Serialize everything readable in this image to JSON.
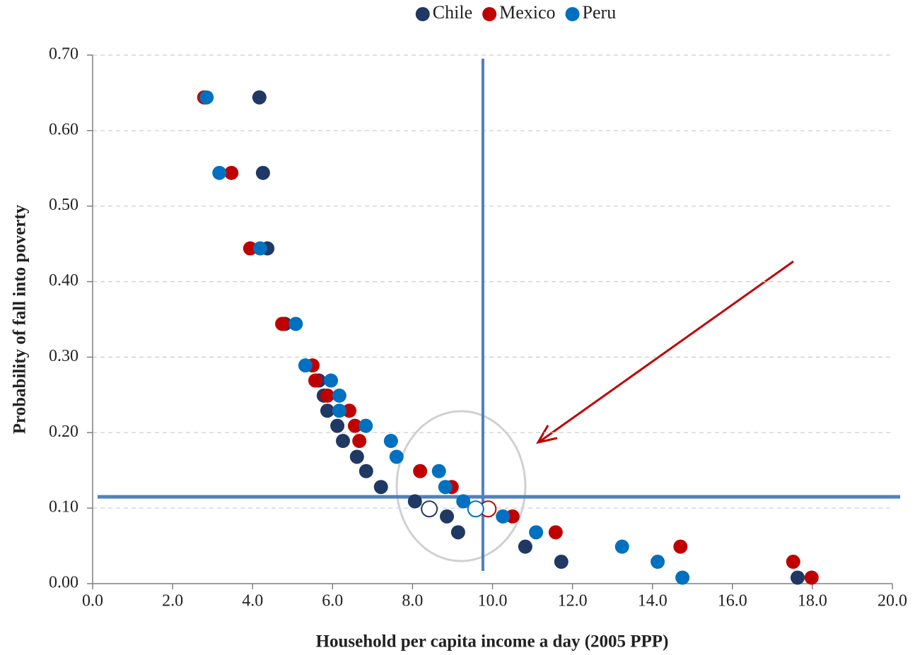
{
  "chart_data": {
    "type": "scatter",
    "x_label": "Household per capita income a day (2005 PPP)",
    "y_label": "Probability of fall into poverty",
    "xlim": [
      0,
      20
    ],
    "xticks": [
      {
        "value": 0,
        "label": "0.0"
      },
      {
        "value": 2,
        "label": "2.0"
      },
      {
        "value": 4,
        "label": "4.0"
      },
      {
        "value": 6,
        "label": "6.0"
      },
      {
        "value": 8,
        "label": "8.0"
      },
      {
        "value": 10,
        "label": "10.0"
      },
      {
        "value": 12,
        "label": "12.0"
      },
      {
        "value": 14,
        "label": "14.0"
      },
      {
        "value": 16,
        "label": "16.0"
      },
      {
        "value": 18,
        "label": "18.0"
      },
      {
        "value": 20,
        "label": "20.0"
      }
    ],
    "ylim": [
      0,
      0.7
    ],
    "yticks": [
      {
        "value": 0,
        "label": "0.00"
      },
      {
        "value": 0.1,
        "label": "0.10"
      },
      {
        "value": 0.2,
        "label": "0.20"
      },
      {
        "value": 0.3,
        "label": "0.30"
      },
      {
        "value": 0.4,
        "label": "0.40"
      },
      {
        "value": 0.5,
        "label": "0.50"
      },
      {
        "value": 0.6,
        "label": "0.60"
      },
      {
        "value": 0.7,
        "label": "0.70"
      }
    ],
    "grid": true,
    "legend": "top",
    "reference_lines": {
      "x": 9.76,
      "y": 0.115
    },
    "series": [
      {
        "name": "Chile",
        "color": "#1f3864",
        "x": [
          4.17,
          4.26,
          4.37,
          4.81,
          5.66,
          5.78,
          5.87,
          6.12,
          6.26,
          6.61,
          6.84,
          7.21,
          8.06,
          8.86,
          9.14,
          10.82,
          11.72,
          17.63
        ],
        "values": [
          0.644,
          0.544,
          0.444,
          0.344,
          0.269,
          0.249,
          0.229,
          0.209,
          0.189,
          0.168,
          0.149,
          0.128,
          0.109,
          0.089,
          0.068,
          0.049,
          0.029,
          0.008
        ],
        "open_point": {
          "x": 8.42,
          "value": 0.099
        }
      },
      {
        "name": "Mexico",
        "color": "#c00000",
        "x": [
          2.79,
          3.47,
          3.94,
          4.74,
          5.5,
          5.57,
          5.87,
          6.42,
          6.56,
          6.67,
          8.19,
          8.98,
          10.5,
          11.58,
          14.7,
          17.52,
          17.98
        ],
        "values": [
          0.644,
          0.544,
          0.444,
          0.344,
          0.289,
          0.269,
          0.249,
          0.229,
          0.209,
          0.189,
          0.149,
          0.128,
          0.089,
          0.068,
          0.049,
          0.029,
          0.008
        ],
        "open_point": {
          "x": 9.89,
          "value": 0.099
        }
      },
      {
        "name": "Peru",
        "color": "#0070c0",
        "x": [
          2.85,
          3.17,
          4.19,
          5.08,
          5.32,
          5.96,
          6.17,
          6.17,
          6.83,
          7.46,
          7.6,
          8.66,
          8.82,
          9.27,
          10.26,
          11.09,
          13.24,
          14.13,
          14.75
        ],
        "values": [
          0.644,
          0.544,
          0.444,
          0.344,
          0.289,
          0.269,
          0.249,
          0.229,
          0.209,
          0.189,
          0.168,
          0.149,
          0.128,
          0.109,
          0.089,
          0.068,
          0.049,
          0.029,
          0.008
        ],
        "open_point": {
          "x": 9.58,
          "value": 0.099
        }
      }
    ]
  }
}
